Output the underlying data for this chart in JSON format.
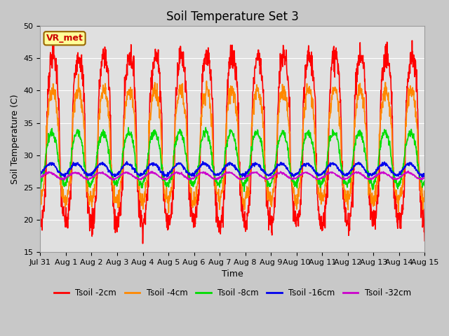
{
  "title": "Soil Temperature Set 3",
  "xlabel": "Time",
  "ylabel": "Soil Temperature (C)",
  "ylim": [
    15,
    50
  ],
  "xlim_days": [
    0,
    15
  ],
  "fig_bg_color": "#c8c8c8",
  "plot_bg_color": "#e0e0e0",
  "annotation_text": "VR_met",
  "annotation_bg": "#ffff99",
  "annotation_border": "#996600",
  "annotation_text_color": "#cc0000",
  "series_order": [
    "Tsoil -2cm",
    "Tsoil -4cm",
    "Tsoil -8cm",
    "Tsoil -16cm",
    "Tsoil -32cm"
  ],
  "series": {
    "Tsoil -2cm": {
      "color": "#ff0000",
      "lw": 1.2,
      "mean": 32.5,
      "amp": 13.0,
      "phase": 0.0,
      "sharpness": 0.5
    },
    "Tsoil -4cm": {
      "color": "#ff8800",
      "lw": 1.2,
      "mean": 31.5,
      "amp": 8.5,
      "phase": 0.12,
      "sharpness": 0.6
    },
    "Tsoil -8cm": {
      "color": "#00dd00",
      "lw": 1.2,
      "mean": 29.5,
      "amp": 4.0,
      "phase": 0.3,
      "sharpness": 0.75
    },
    "Tsoil -16cm": {
      "color": "#0000ee",
      "lw": 1.2,
      "mean": 27.8,
      "amp": 0.9,
      "phase": 0.6,
      "sharpness": 1.0
    },
    "Tsoil -32cm": {
      "color": "#cc00cc",
      "lw": 1.2,
      "mean": 26.8,
      "amp": 0.5,
      "phase": 0.9,
      "sharpness": 1.0
    }
  },
  "xtick_labels": [
    "Jul 31",
    "Aug 1",
    "Aug 2",
    "Aug 3",
    "Aug 4",
    "Aug 5",
    "Aug 6",
    "Aug 7",
    "Aug 8",
    "Aug 9",
    "Aug 10",
    "Aug 11",
    "Aug 12",
    "Aug 13",
    "Aug 14",
    "Aug 15"
  ],
  "xtick_positions": [
    0,
    1,
    2,
    3,
    4,
    5,
    6,
    7,
    8,
    9,
    10,
    11,
    12,
    13,
    14,
    15
  ],
  "ytick_positions": [
    15,
    20,
    25,
    30,
    35,
    40,
    45,
    50
  ],
  "grid_color": "#ffffff",
  "title_fontsize": 12,
  "label_fontsize": 9,
  "tick_fontsize": 8
}
